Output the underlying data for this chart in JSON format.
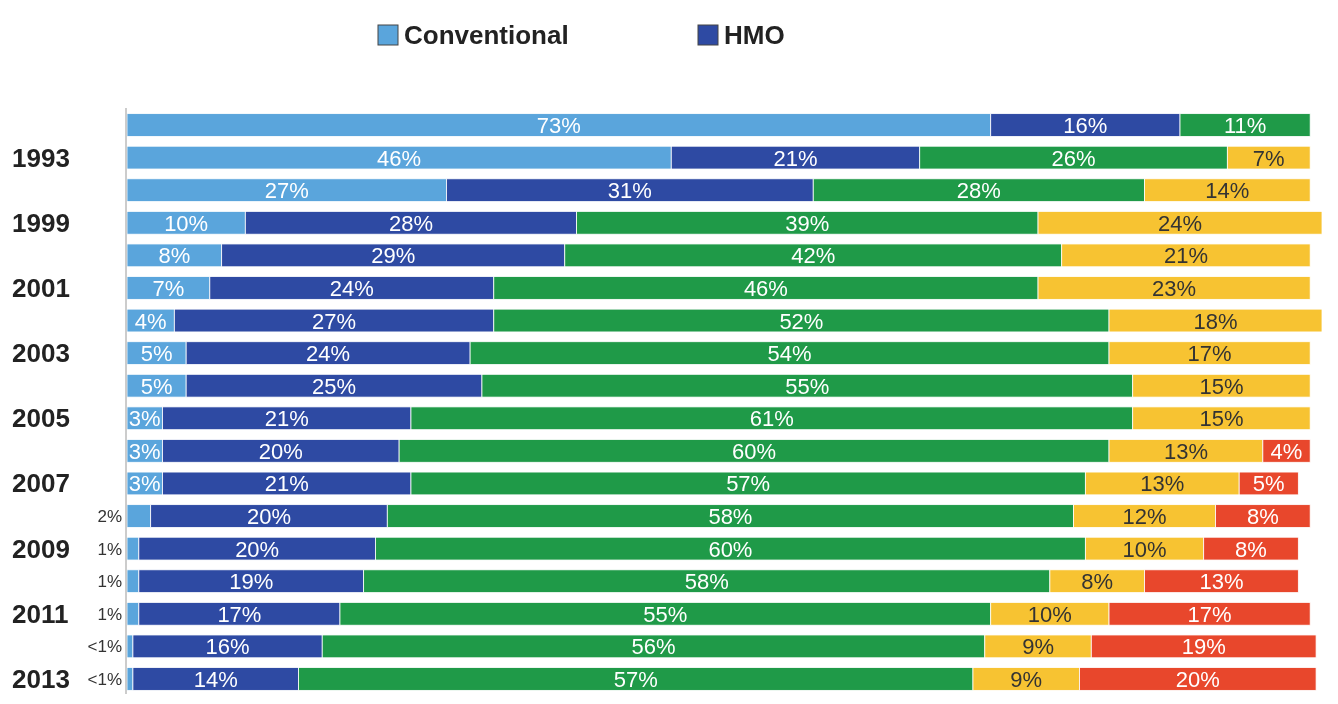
{
  "chart_data": {
    "type": "bar",
    "orientation": "horizontal",
    "stacked": true,
    "legend": "top",
    "categories": [
      null,
      "1993",
      null,
      "1999",
      null,
      "2001",
      null,
      "2003",
      null,
      "2005",
      null,
      "2007",
      null,
      "2009",
      null,
      "2011",
      null,
      "2013"
    ],
    "series": [
      {
        "name": "Conventional",
        "color": "#5aa5dc",
        "values": [
          73,
          46,
          27,
          10,
          8,
          7,
          4,
          5,
          5,
          3,
          3,
          3,
          2,
          1,
          1,
          1,
          0.5,
          0.5
        ],
        "value_labels": [
          "73%",
          "46%",
          "27%",
          "10%",
          "8%",
          "7%",
          "4%",
          "5%",
          "5%",
          "3%",
          "3%",
          "3%",
          "2%",
          "1%",
          "1%",
          "1%",
          "<1%",
          "<1%"
        ]
      },
      {
        "name": "HMO",
        "color": "#2e4aa3",
        "values": [
          16,
          21,
          31,
          28,
          29,
          24,
          27,
          24,
          25,
          21,
          20,
          21,
          20,
          20,
          19,
          17,
          16,
          14
        ],
        "value_labels": [
          "16%",
          "21%",
          "31%",
          "28%",
          "29%",
          "24%",
          "27%",
          "24%",
          "25%",
          "21%",
          "20%",
          "21%",
          "20%",
          "20%",
          "19%",
          "17%",
          "16%",
          "14%"
        ]
      },
      {
        "color": "#1f9a48",
        "values": [
          11,
          26,
          28,
          39,
          42,
          46,
          52,
          54,
          55,
          61,
          60,
          57,
          58,
          60,
          58,
          55,
          56,
          57
        ],
        "value_labels": [
          "11%",
          "26%",
          "28%",
          "39%",
          "42%",
          "46%",
          "52%",
          "54%",
          "55%",
          "61%",
          "60%",
          "57%",
          "58%",
          "60%",
          "58%",
          "55%",
          "56%",
          "57%"
        ]
      },
      {
        "color": "#f7c332",
        "values": [
          null,
          7,
          14,
          24,
          21,
          23,
          18,
          17,
          15,
          15,
          13,
          13,
          12,
          10,
          8,
          10,
          9,
          9
        ],
        "value_labels": [
          null,
          "7%",
          "14%",
          "24%",
          "21%",
          "23%",
          "18%",
          "17%",
          "15%",
          "15%",
          "13%",
          "13%",
          "12%",
          "10%",
          "8%",
          "10%",
          "9%",
          "9%"
        ]
      },
      {
        "color": "#e8472c",
        "values": [
          null,
          null,
          null,
          null,
          null,
          null,
          null,
          null,
          null,
          null,
          4,
          5,
          8,
          8,
          13,
          17,
          19,
          20
        ],
        "value_labels": [
          null,
          null,
          null,
          null,
          null,
          null,
          null,
          null,
          null,
          null,
          "4%",
          "5%",
          "8%",
          "8%",
          "13%",
          "17%",
          "19%",
          "20%"
        ]
      }
    ]
  }
}
